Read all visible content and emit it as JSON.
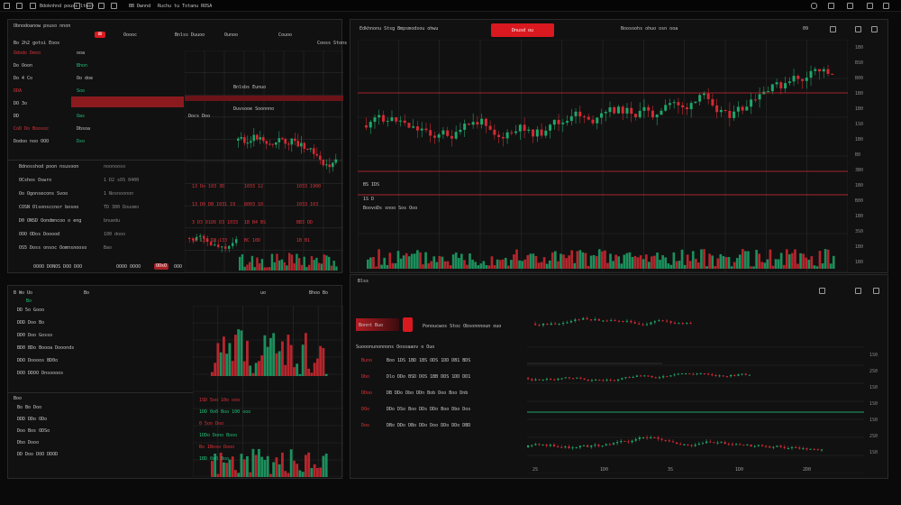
{
  "colors": {
    "bg": "#0a0a0a",
    "panel": "#111111",
    "up": "#1fa66a",
    "down": "#d42a33",
    "accent_red": "#d9191f",
    "grid": "#2b2b2b"
  },
  "topbar": {
    "title": "Bdoknhnd pouss ltusy",
    "center_a": "BB Dwnnd",
    "center_b": "Ruchu tu Totanu ROSA",
    "icons": [
      "window-icon",
      "layout-icon",
      "chart-icon",
      "bookmark-icon",
      "bell-icon",
      "settings-icon"
    ]
  },
  "left_top": {
    "title": "Obnodoanow psuso nnon",
    "col_a": "Bo  2h2 gotsi Eoox",
    "badge": "BD",
    "cols": [
      "Ooooc",
      "Bnlss Duuoo",
      "Ounoo",
      "Couoo"
    ],
    "sub": "Cooss Stons"
  },
  "left_rows": [
    {
      "label": "Ododo  Deoo",
      "v": "ooa"
    },
    {
      "label": "Do  Ooon",
      "v": "Bhon"
    },
    {
      "label": "Do 4 Co",
      "v": "Oo doe"
    },
    {
      "label": "DDA",
      "v": "Soo"
    },
    {
      "label": "DO 3o",
      "v": "Ooo"
    },
    {
      "label": "DD",
      "v": "Oas"
    },
    {
      "label": "CoD Do  Boosoc",
      "v": "Dbsoa"
    },
    {
      "label": "Dodoo noo  OOO",
      "v": "Dxo"
    }
  ],
  "left_mid_rows": [
    {
      "label": "Bdnosshod poon nsusoon",
      "v": "noonooso"
    },
    {
      "label": "OCshos  Oswro",
      "v": "1 D2 sOS 0400"
    },
    {
      "label": "Oo Ogonsecons   Svoo",
      "v": "1 Nosnoonon"
    },
    {
      "label": "COSN Olsonsccnor bosoo",
      "v": "TD 300 Douomo"
    },
    {
      "label": "D0 ONSD Oondmncoo o eng",
      "v": "bnuedu"
    },
    {
      "label": "OOO  ODos  Dooood",
      "v": "100 dooo"
    },
    {
      "label": "OS5  Doss onsoc Oomnsnooso",
      "v": "Bao"
    }
  ],
  "left_bottom": {
    "a": "OOOO  DONOS DOO  DOO",
    "b": "OOOO OOOO",
    "c": "OOsO",
    "d": "OOO"
  },
  "red_nums": [
    "13 Do 103  3D",
    "1033 12",
    "1033 1900",
    "13 D0 DB 1031 19",
    "8003 10",
    "1033 103",
    "3 D3 D1D6 D3 1033",
    "1B B4 BS",
    "BB3 DD",
    "1B 133 1B 133",
    "BC 10D",
    "1B B1"
  ],
  "mid_chart": {
    "title": "Bnlsbs Eunuo",
    "sub": "Duvsooe Soonnno",
    "label2": "Docs Doo",
    "vol_labels": [
      "BSDS",
      "BDBA",
      "BSOS",
      "BSOS"
    ]
  },
  "bottom_left": {
    "header": [
      "B Wo Uo",
      "Bo",
      "uo"
    ],
    "header2": [
      "Bo",
      "Bhoo Bo"
    ],
    "rows": [
      "DD 5o Gooo",
      "DDD Doo Bo",
      "DD0 Doo Gosso",
      "BD0 BDo Boooa Dooonds",
      "DDO  Doooos BD0o",
      "DOO DDOO Dnsoooos"
    ],
    "rows2": [
      "Bo Bo Doo",
      "DDD DDo ODo",
      "Doo Bos ODSo",
      "Dbo Dooo",
      "DD Doo DOO DDOD"
    ],
    "mid": [
      "1SD 5oo 10o  ooo",
      "1DD 0o0 Boo 100 ooo",
      "0 5on Doo",
      "1DDo Dono Booo",
      "Bo 1Boso Dooo",
      "1BD 0o0 Boo"
    ],
    "mid_head": "Boo"
  },
  "right_top": {
    "title": "Edkhnonu Stsg  Bmpsmodsou ohwu",
    "button": "Dnusd ou",
    "right_title": "Boosoohs ohuo  osn ooa",
    "num": "09"
  },
  "right_top_axis": [
    "1B0",
    "BS0",
    "B00",
    "1B0",
    "1B0",
    "1S0",
    "1B0",
    "B0",
    "3B0",
    "1B0",
    "B00",
    "1B0",
    "3S0",
    "1B0",
    "1B0"
  ],
  "right_top_xaxis": [
    "2SD",
    "2SD",
    "5SB",
    "5B0",
    "2SD",
    "1SD",
    "1BD",
    "3BSD",
    "3SD",
    "1SD",
    "1SD"
  ],
  "right_top_vol": {
    "label": "BS IDS",
    "label2": "BoovoDs snoo  Sos  Ooo",
    "sub": "1S D"
  },
  "right_bottom": {
    "tab": "Blss",
    "title": "Ponoucwos Stoc Obsonnnoun ouo",
    "sub": "Suooonunonnons  Oosoaaov o  Ouo",
    "header_label": "Bonnt Buo",
    "row_head": [
      "Buno",
      "Dbo",
      "DDoo",
      "DOo",
      "Doo"
    ],
    "rows": [
      "Boo  1DS 1BD 1BS ODS 1DD DB1 BDS",
      "Dlo  DDo BSD DOS 1BB DDS 1DD DD1",
      "DB  DDo Dbo DDn Bob Doo Boo Dnb",
      "DDo  DSo Boo DDs DDo Boo Dbo Dos",
      "DBo  DDo DBo DDo Doo DDo DDo DBD"
    ],
    "axis": [
      "1S0",
      "2S0",
      "1S0",
      "1S0",
      "1S0",
      "2S0",
      "1S0"
    ],
    "xaxis": [
      "2S",
      "1D0",
      "3S",
      "1D0",
      "2D0"
    ]
  }
}
